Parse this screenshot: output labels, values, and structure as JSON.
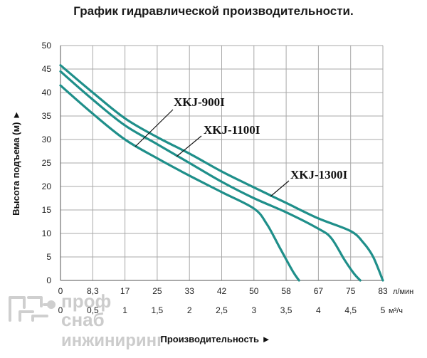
{
  "chart_data": {
    "type": "line",
    "title": "График гидравлической производительности.",
    "ylabel": "Высота подъема (м) ►",
    "xlabel": "Производительность ►",
    "ylim": [
      0,
      50
    ],
    "y_ticks": [
      "0",
      "5",
      "10",
      "15",
      "20",
      "25",
      "30",
      "35",
      "40",
      "45",
      "50"
    ],
    "x_ticks_lmin": [
      "0",
      "8,3",
      "17",
      "25",
      "33",
      "42",
      "50",
      "58",
      "67",
      "75",
      "83"
    ],
    "x_unit_lmin": "л/мин",
    "x_ticks_m3h": [
      "0",
      "0,5",
      "1",
      "1,5",
      "2",
      "2,5",
      "3",
      "3,5",
      "4",
      "4,5",
      "5"
    ],
    "x_unit_m3h": "м³/ч",
    "x_units": "м³/ч",
    "xlim": [
      0,
      5
    ],
    "grid": true,
    "series": [
      {
        "name": "XKJ-900I",
        "x": [
          0,
          0.5,
          1,
          1.5,
          2,
          2.5,
          3,
          3.2,
          3.4,
          3.6,
          3.7
        ],
        "y": [
          41.5,
          35.5,
          30,
          26,
          22.3,
          18.8,
          15.3,
          12,
          7,
          2,
          0
        ]
      },
      {
        "name": "XKJ-1100I",
        "x": [
          0,
          0.5,
          1,
          1.5,
          2,
          2.5,
          3,
          3.5,
          4,
          4.2,
          4.4,
          4.55,
          4.65
        ],
        "y": [
          44.5,
          38.5,
          33,
          29,
          25,
          21,
          17.5,
          14.5,
          11,
          9,
          4.5,
          1.5,
          0
        ]
      },
      {
        "name": "XKJ-1300I",
        "x": [
          0,
          0.5,
          1,
          1.5,
          2,
          2.5,
          3,
          3.5,
          4,
          4.5,
          4.7,
          4.85,
          5
        ],
        "y": [
          45.8,
          40,
          34.5,
          30.5,
          27,
          23.2,
          19.8,
          16.5,
          13.2,
          10.5,
          8,
          5,
          0
        ]
      }
    ],
    "line_color": "#1f8f8a"
  },
  "watermark": {
    "line1": "проф",
    "line2": "снаб",
    "line3": "инжиниринг"
  }
}
